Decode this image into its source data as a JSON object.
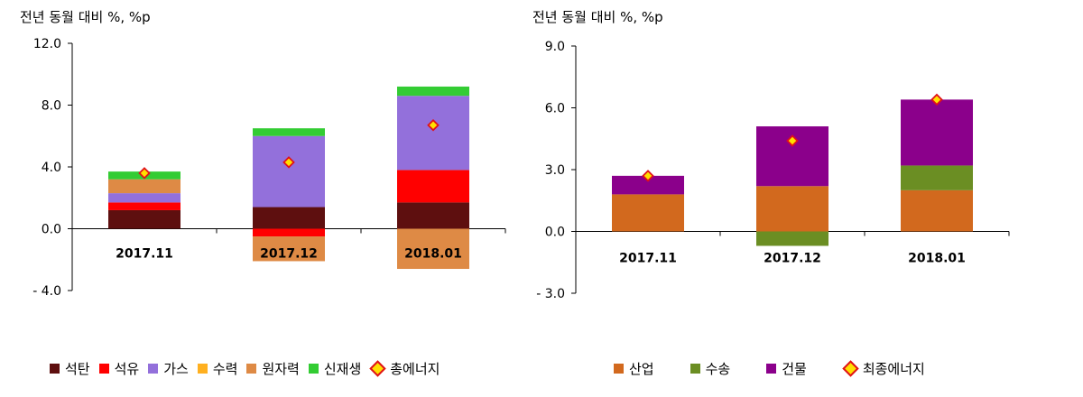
{
  "colors": {
    "coal": "#5E0F0F",
    "oil": "#FF0000",
    "gas": "#9370DB",
    "hydro": "#FFB020",
    "nuclear": "#DE8A45",
    "renewable": "#33CC33",
    "industry": "#D2691E",
    "transport": "#6B8E23",
    "building": "#8B008B",
    "marker_fill": "#FFE000",
    "marker_stroke": "#E0101A"
  },
  "chart_data": [
    {
      "type": "bar",
      "stacked": true,
      "unit_label": "전년 동월 대비 %, %p",
      "categories": [
        "2017.11",
        "2017.12",
        "2018.01"
      ],
      "ylim": [
        -4.0,
        12.0
      ],
      "yticks": [
        "12.0",
        "8.0",
        "4.0",
        "0.0",
        "- 4.0"
      ],
      "series": [
        {
          "name": "석탄",
          "values": [
            1.2,
            1.4,
            1.7
          ],
          "color_key": "coal"
        },
        {
          "name": "석유",
          "values": [
            0.5,
            -0.5,
            2.1
          ],
          "color_key": "oil"
        },
        {
          "name": "가스",
          "values": [
            0.6,
            4.6,
            4.8
          ],
          "color_key": "gas"
        },
        {
          "name": "수력",
          "values": [
            0.0,
            0.0,
            0.0
          ],
          "color_key": "hydro"
        },
        {
          "name": "원자력",
          "values": [
            0.9,
            -1.6,
            -2.6
          ],
          "color_key": "nuclear"
        },
        {
          "name": "신재생",
          "values": [
            0.5,
            0.5,
            0.6
          ],
          "color_key": "renewable"
        }
      ],
      "total": {
        "name": "총에너지",
        "values": [
          3.6,
          4.3,
          6.7
        ]
      }
    },
    {
      "type": "bar",
      "stacked": true,
      "unit_label": "전년 동월 대비 %, %p",
      "categories": [
        "2017.11",
        "2017.12",
        "2018.01"
      ],
      "ylim": [
        -3.0,
        9.0
      ],
      "yticks": [
        "9.0",
        "6.0",
        "3.0",
        "0.0",
        "- 3.0"
      ],
      "series": [
        {
          "name": "산업",
          "values": [
            1.8,
            2.2,
            2.0
          ],
          "color_key": "industry"
        },
        {
          "name": "수송",
          "values": [
            0.0,
            -0.7,
            1.2
          ],
          "color_key": "transport"
        },
        {
          "name": "건물",
          "values": [
            0.9,
            2.9,
            3.2
          ],
          "color_key": "building"
        }
      ],
      "total": {
        "name": "최종에너지",
        "values": [
          2.7,
          4.4,
          6.4
        ]
      }
    }
  ]
}
